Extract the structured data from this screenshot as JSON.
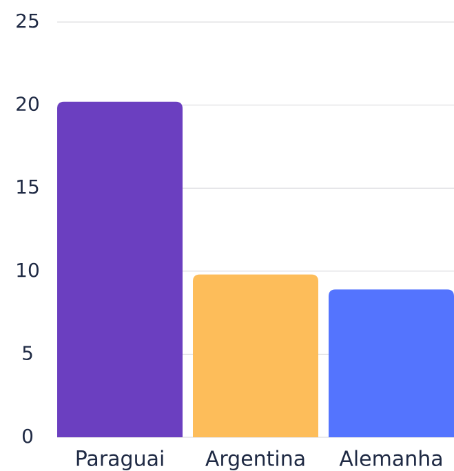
{
  "chart_data": {
    "type": "bar",
    "categories": [
      "Paraguai",
      "Argentina",
      "Alemanha"
    ],
    "values": [
      20.2,
      9.8,
      8.9
    ],
    "colors": [
      "#6b3fc0",
      "#fdbd5a",
      "#5474fe"
    ],
    "ylim": [
      0,
      25
    ],
    "yticks": [
      0,
      5,
      10,
      15,
      20,
      25
    ],
    "grid": true
  }
}
